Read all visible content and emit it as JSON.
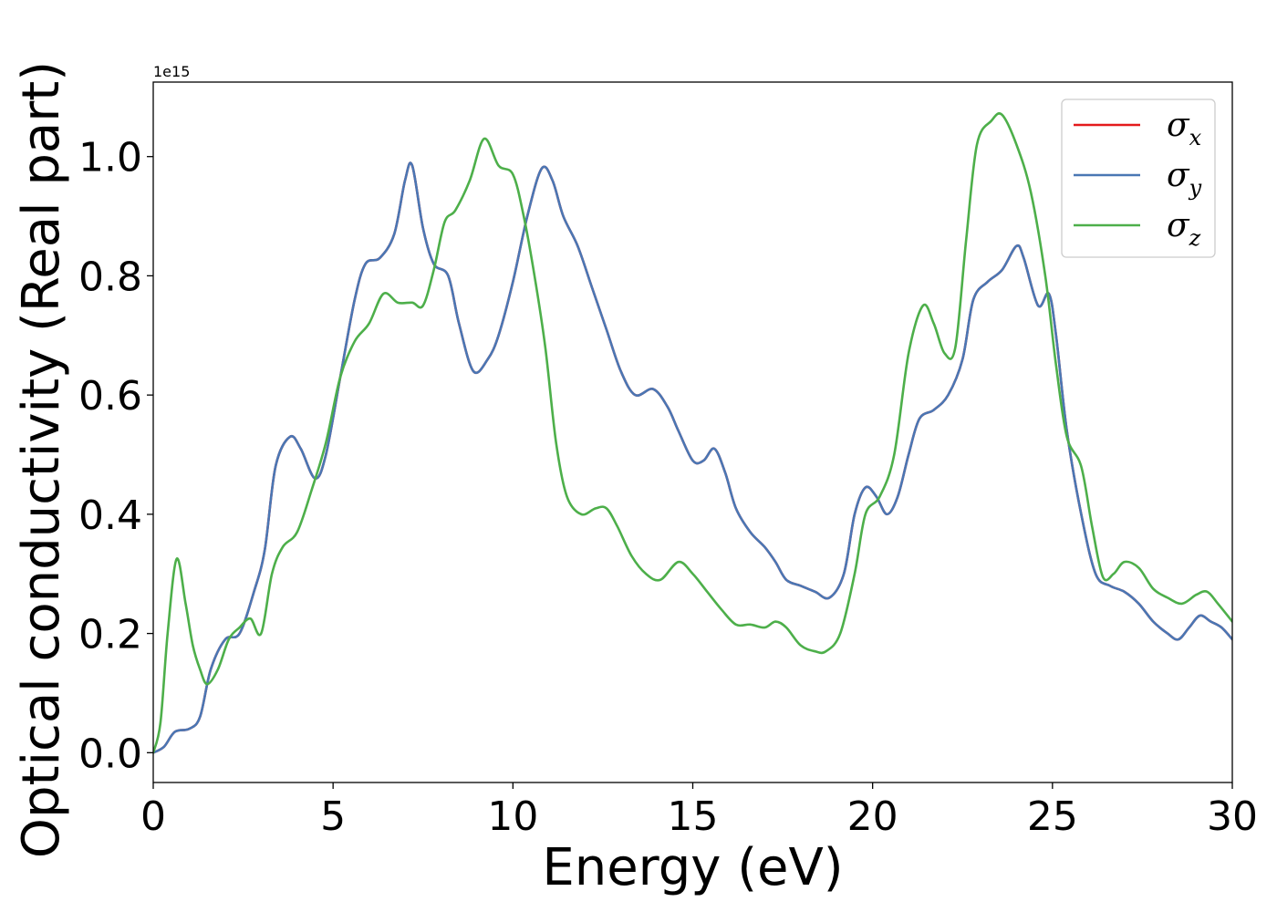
{
  "chart_data": {
    "type": "line",
    "xlabel": "Energy (eV)",
    "ylabel": "Optical conductivity (Real part)",
    "y_offset_label": "1e15",
    "xlim": [
      0,
      30
    ],
    "ylim": [
      -0.05,
      1.125
    ],
    "xticks": [
      0,
      5,
      10,
      15,
      20,
      25,
      30
    ],
    "xtick_labels": [
      "0",
      "5",
      "10",
      "15",
      "20",
      "25",
      "30"
    ],
    "yticks": [
      0.0,
      0.2,
      0.4,
      0.6,
      0.8,
      1.0
    ],
    "ytick_labels": [
      "0.0",
      "0.2",
      "0.4",
      "0.6",
      "0.8",
      "1.0"
    ],
    "grid": false,
    "legend_position": "top-right",
    "series": [
      {
        "name": "σx",
        "legend_base": "σ",
        "legend_sub": "x",
        "color": "#e41a1c",
        "points": [
          [
            0,
            0
          ],
          [
            0.3,
            0.01
          ],
          [
            0.6,
            0.035
          ],
          [
            1.0,
            0.04
          ],
          [
            1.3,
            0.06
          ],
          [
            1.6,
            0.14
          ],
          [
            2.0,
            0.19
          ],
          [
            2.4,
            0.2
          ],
          [
            2.8,
            0.27
          ],
          [
            3.1,
            0.34
          ],
          [
            3.4,
            0.48
          ],
          [
            3.8,
            0.53
          ],
          [
            4.1,
            0.51
          ],
          [
            4.5,
            0.46
          ],
          [
            4.8,
            0.5
          ],
          [
            5.2,
            0.63
          ],
          [
            5.6,
            0.76
          ],
          [
            5.9,
            0.82
          ],
          [
            6.3,
            0.83
          ],
          [
            6.7,
            0.87
          ],
          [
            7.0,
            0.96
          ],
          [
            7.2,
            0.985
          ],
          [
            7.5,
            0.88
          ],
          [
            7.8,
            0.82
          ],
          [
            8.2,
            0.8
          ],
          [
            8.5,
            0.72
          ],
          [
            8.9,
            0.64
          ],
          [
            9.3,
            0.66
          ],
          [
            9.6,
            0.7
          ],
          [
            10.0,
            0.79
          ],
          [
            10.4,
            0.9
          ],
          [
            10.8,
            0.98
          ],
          [
            11.1,
            0.96
          ],
          [
            11.4,
            0.9
          ],
          [
            11.8,
            0.85
          ],
          [
            12.2,
            0.78
          ],
          [
            12.6,
            0.71
          ],
          [
            13.0,
            0.64
          ],
          [
            13.4,
            0.6
          ],
          [
            13.9,
            0.61
          ],
          [
            14.3,
            0.58
          ],
          [
            14.6,
            0.54
          ],
          [
            15.0,
            0.49
          ],
          [
            15.3,
            0.49
          ],
          [
            15.6,
            0.51
          ],
          [
            15.9,
            0.47
          ],
          [
            16.2,
            0.41
          ],
          [
            16.6,
            0.37
          ],
          [
            17.0,
            0.345
          ],
          [
            17.3,
            0.32
          ],
          [
            17.6,
            0.29
          ],
          [
            18.0,
            0.28
          ],
          [
            18.4,
            0.27
          ],
          [
            18.8,
            0.26
          ],
          [
            19.2,
            0.3
          ],
          [
            19.5,
            0.4
          ],
          [
            19.8,
            0.445
          ],
          [
            20.1,
            0.43
          ],
          [
            20.4,
            0.4
          ],
          [
            20.7,
            0.43
          ],
          [
            21.0,
            0.5
          ],
          [
            21.3,
            0.56
          ],
          [
            21.7,
            0.575
          ],
          [
            22.1,
            0.6
          ],
          [
            22.5,
            0.66
          ],
          [
            22.8,
            0.76
          ],
          [
            23.2,
            0.79
          ],
          [
            23.6,
            0.81
          ],
          [
            24.0,
            0.85
          ],
          [
            24.2,
            0.83
          ],
          [
            24.6,
            0.75
          ],
          [
            24.9,
            0.77
          ],
          [
            25.1,
            0.7
          ],
          [
            25.4,
            0.54
          ],
          [
            25.8,
            0.4
          ],
          [
            26.2,
            0.3
          ],
          [
            26.6,
            0.28
          ],
          [
            27.0,
            0.27
          ],
          [
            27.4,
            0.25
          ],
          [
            27.8,
            0.22
          ],
          [
            28.2,
            0.2
          ],
          [
            28.5,
            0.19
          ],
          [
            28.8,
            0.21
          ],
          [
            29.1,
            0.23
          ],
          [
            29.4,
            0.22
          ],
          [
            29.7,
            0.21
          ],
          [
            30.0,
            0.19
          ]
        ]
      },
      {
        "name": "σy",
        "legend_base": "σ",
        "legend_sub": "y",
        "color": "#4a77b4",
        "points": [
          [
            0,
            0
          ],
          [
            0.3,
            0.01
          ],
          [
            0.6,
            0.035
          ],
          [
            1.0,
            0.04
          ],
          [
            1.3,
            0.06
          ],
          [
            1.6,
            0.14
          ],
          [
            2.0,
            0.19
          ],
          [
            2.4,
            0.2
          ],
          [
            2.8,
            0.27
          ],
          [
            3.1,
            0.34
          ],
          [
            3.4,
            0.48
          ],
          [
            3.8,
            0.53
          ],
          [
            4.1,
            0.51
          ],
          [
            4.5,
            0.46
          ],
          [
            4.8,
            0.5
          ],
          [
            5.2,
            0.63
          ],
          [
            5.6,
            0.76
          ],
          [
            5.9,
            0.82
          ],
          [
            6.3,
            0.83
          ],
          [
            6.7,
            0.87
          ],
          [
            7.0,
            0.96
          ],
          [
            7.2,
            0.985
          ],
          [
            7.5,
            0.88
          ],
          [
            7.8,
            0.82
          ],
          [
            8.2,
            0.8
          ],
          [
            8.5,
            0.72
          ],
          [
            8.9,
            0.64
          ],
          [
            9.3,
            0.66
          ],
          [
            9.6,
            0.7
          ],
          [
            10.0,
            0.79
          ],
          [
            10.4,
            0.9
          ],
          [
            10.8,
            0.98
          ],
          [
            11.1,
            0.96
          ],
          [
            11.4,
            0.9
          ],
          [
            11.8,
            0.85
          ],
          [
            12.2,
            0.78
          ],
          [
            12.6,
            0.71
          ],
          [
            13.0,
            0.64
          ],
          [
            13.4,
            0.6
          ],
          [
            13.9,
            0.61
          ],
          [
            14.3,
            0.58
          ],
          [
            14.6,
            0.54
          ],
          [
            15.0,
            0.49
          ],
          [
            15.3,
            0.49
          ],
          [
            15.6,
            0.51
          ],
          [
            15.9,
            0.47
          ],
          [
            16.2,
            0.41
          ],
          [
            16.6,
            0.37
          ],
          [
            17.0,
            0.345
          ],
          [
            17.3,
            0.32
          ],
          [
            17.6,
            0.29
          ],
          [
            18.0,
            0.28
          ],
          [
            18.4,
            0.27
          ],
          [
            18.8,
            0.26
          ],
          [
            19.2,
            0.3
          ],
          [
            19.5,
            0.4
          ],
          [
            19.8,
            0.445
          ],
          [
            20.1,
            0.43
          ],
          [
            20.4,
            0.4
          ],
          [
            20.7,
            0.43
          ],
          [
            21.0,
            0.5
          ],
          [
            21.3,
            0.56
          ],
          [
            21.7,
            0.575
          ],
          [
            22.1,
            0.6
          ],
          [
            22.5,
            0.66
          ],
          [
            22.8,
            0.76
          ],
          [
            23.2,
            0.79
          ],
          [
            23.6,
            0.81
          ],
          [
            24.0,
            0.85
          ],
          [
            24.2,
            0.83
          ],
          [
            24.6,
            0.75
          ],
          [
            24.9,
            0.77
          ],
          [
            25.1,
            0.7
          ],
          [
            25.4,
            0.54
          ],
          [
            25.8,
            0.4
          ],
          [
            26.2,
            0.3
          ],
          [
            26.6,
            0.28
          ],
          [
            27.0,
            0.27
          ],
          [
            27.4,
            0.25
          ],
          [
            27.8,
            0.22
          ],
          [
            28.2,
            0.2
          ],
          [
            28.5,
            0.19
          ],
          [
            28.8,
            0.21
          ],
          [
            29.1,
            0.23
          ],
          [
            29.4,
            0.22
          ],
          [
            29.7,
            0.21
          ],
          [
            30.0,
            0.19
          ]
        ]
      },
      {
        "name": "σz",
        "legend_base": "σ",
        "legend_sub": "z",
        "color": "#4daf4a",
        "points": [
          [
            0,
            0
          ],
          [
            0.2,
            0.05
          ],
          [
            0.4,
            0.2
          ],
          [
            0.65,
            0.325
          ],
          [
            0.9,
            0.25
          ],
          [
            1.1,
            0.18
          ],
          [
            1.3,
            0.14
          ],
          [
            1.5,
            0.115
          ],
          [
            1.8,
            0.14
          ],
          [
            2.1,
            0.19
          ],
          [
            2.4,
            0.21
          ],
          [
            2.7,
            0.225
          ],
          [
            3.0,
            0.2
          ],
          [
            3.3,
            0.3
          ],
          [
            3.6,
            0.345
          ],
          [
            4.0,
            0.37
          ],
          [
            4.4,
            0.44
          ],
          [
            4.8,
            0.52
          ],
          [
            5.2,
            0.63
          ],
          [
            5.6,
            0.69
          ],
          [
            6.0,
            0.72
          ],
          [
            6.4,
            0.77
          ],
          [
            6.8,
            0.755
          ],
          [
            7.2,
            0.755
          ],
          [
            7.5,
            0.75
          ],
          [
            7.8,
            0.81
          ],
          [
            8.1,
            0.89
          ],
          [
            8.4,
            0.91
          ],
          [
            8.8,
            0.96
          ],
          [
            9.2,
            1.03
          ],
          [
            9.6,
            0.985
          ],
          [
            10.0,
            0.97
          ],
          [
            10.3,
            0.9
          ],
          [
            10.6,
            0.8
          ],
          [
            10.9,
            0.68
          ],
          [
            11.2,
            0.52
          ],
          [
            11.5,
            0.43
          ],
          [
            11.9,
            0.4
          ],
          [
            12.3,
            0.41
          ],
          [
            12.6,
            0.41
          ],
          [
            12.9,
            0.38
          ],
          [
            13.3,
            0.33
          ],
          [
            13.7,
            0.3
          ],
          [
            14.1,
            0.29
          ],
          [
            14.6,
            0.32
          ],
          [
            15.0,
            0.3
          ],
          [
            15.4,
            0.27
          ],
          [
            15.8,
            0.24
          ],
          [
            16.2,
            0.215
          ],
          [
            16.6,
            0.215
          ],
          [
            17.0,
            0.21
          ],
          [
            17.3,
            0.22
          ],
          [
            17.6,
            0.21
          ],
          [
            18.0,
            0.18
          ],
          [
            18.4,
            0.17
          ],
          [
            18.7,
            0.17
          ],
          [
            19.1,
            0.2
          ],
          [
            19.5,
            0.3
          ],
          [
            19.8,
            0.4
          ],
          [
            20.2,
            0.43
          ],
          [
            20.6,
            0.5
          ],
          [
            21.0,
            0.67
          ],
          [
            21.4,
            0.75
          ],
          [
            21.7,
            0.72
          ],
          [
            22.0,
            0.67
          ],
          [
            22.3,
            0.68
          ],
          [
            22.6,
            0.86
          ],
          [
            22.9,
            1.02
          ],
          [
            23.3,
            1.06
          ],
          [
            23.6,
            1.07
          ],
          [
            24.0,
            1.02
          ],
          [
            24.4,
            0.94
          ],
          [
            24.8,
            0.8
          ],
          [
            25.1,
            0.65
          ],
          [
            25.4,
            0.53
          ],
          [
            25.8,
            0.48
          ],
          [
            26.1,
            0.38
          ],
          [
            26.4,
            0.295
          ],
          [
            26.7,
            0.3
          ],
          [
            27.0,
            0.32
          ],
          [
            27.4,
            0.31
          ],
          [
            27.8,
            0.275
          ],
          [
            28.2,
            0.26
          ],
          [
            28.6,
            0.25
          ],
          [
            29.0,
            0.265
          ],
          [
            29.3,
            0.27
          ],
          [
            29.6,
            0.25
          ],
          [
            30.0,
            0.22
          ]
        ]
      }
    ]
  }
}
